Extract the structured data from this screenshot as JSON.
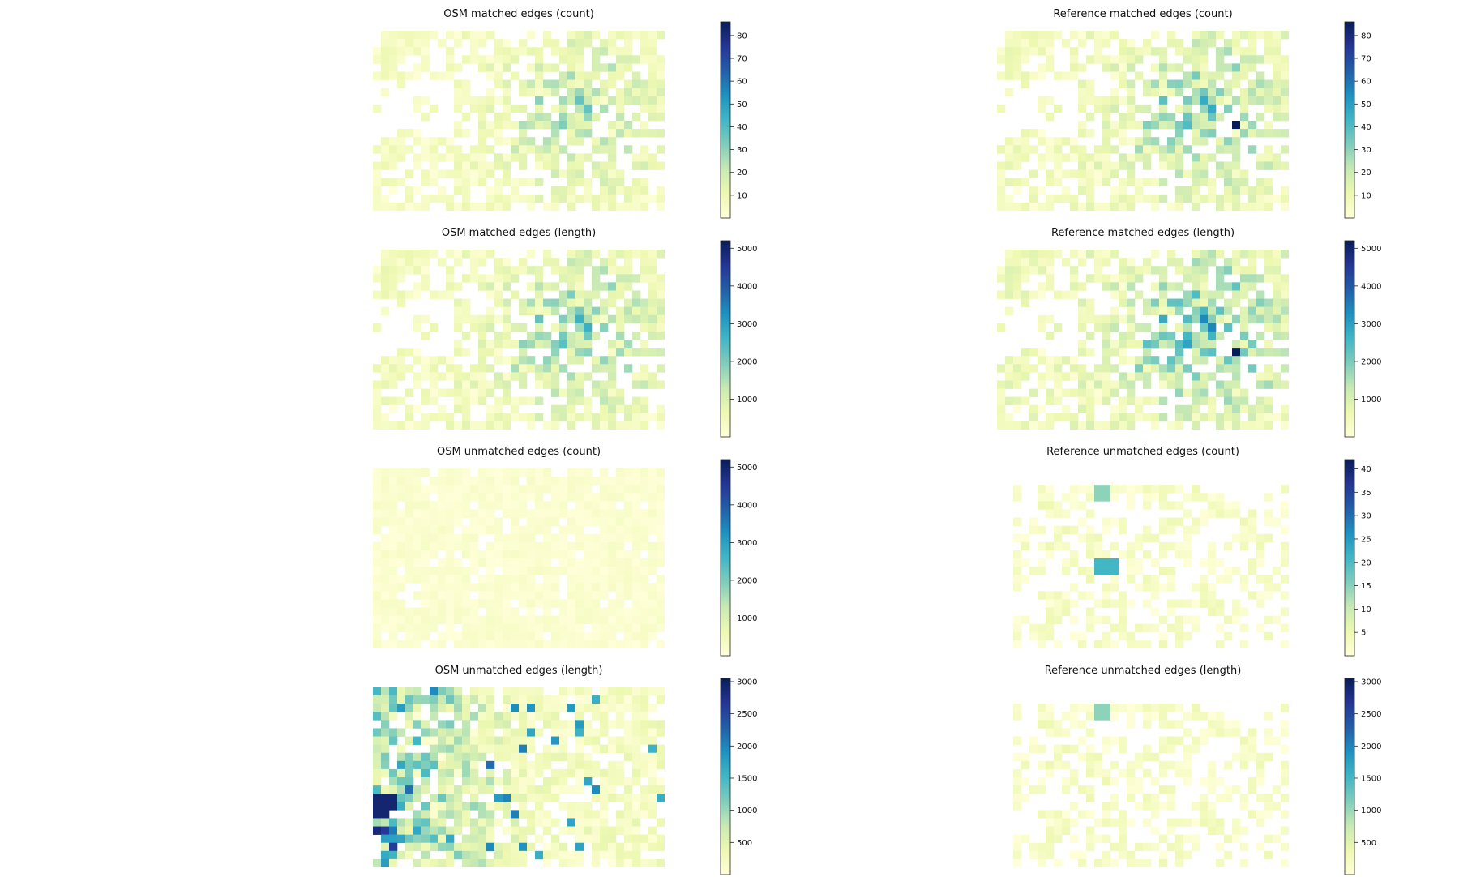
{
  "figure": {
    "panels": [
      {
        "title": "OSM matched edges (count)",
        "max": 86,
        "ticks": [
          10,
          20,
          30,
          40,
          50,
          60,
          70,
          80
        ],
        "pattern": "osm_matched_count"
      },
      {
        "title": "Reference matched edges (count)",
        "max": 86,
        "ticks": [
          10,
          20,
          30,
          40,
          50,
          60,
          70,
          80
        ],
        "pattern": "ref_matched_count"
      },
      {
        "title": "OSM matched edges (length)",
        "max": 5200,
        "ticks": [
          1000,
          2000,
          3000,
          4000,
          5000
        ],
        "pattern": "osm_matched_length"
      },
      {
        "title": "Reference matched edges (length)",
        "max": 5200,
        "ticks": [
          1000,
          2000,
          3000,
          4000,
          5000
        ],
        "pattern": "ref_matched_length"
      },
      {
        "title": "OSM unmatched edges (count)",
        "max": 5200,
        "ticks": [
          1000,
          2000,
          3000,
          4000,
          5000
        ],
        "pattern": "osm_unmatched_count"
      },
      {
        "title": "Reference unmatched edges (count)",
        "max": 42,
        "ticks": [
          5,
          10,
          15,
          20,
          25,
          30,
          35,
          40
        ],
        "pattern": "ref_unmatched_count"
      },
      {
        "title": "OSM unmatched edges (length)",
        "max": 3050,
        "ticks": [
          500,
          1000,
          1500,
          2000,
          2500,
          3000
        ],
        "pattern": "osm_unmatched_length"
      },
      {
        "title": "Reference unmatched edges (length)",
        "max": 3050,
        "ticks": [
          500,
          1000,
          1500,
          2000,
          2500,
          3000
        ],
        "pattern": "ref_unmatched_length"
      }
    ]
  },
  "chart_data": [
    {
      "type": "heatmap",
      "title": "OSM matched edges (count)",
      "colormap": "YlGnBu",
      "colorbar_range": [
        0,
        86
      ],
      "colorbar_ticks": [
        10,
        20,
        30,
        40,
        50,
        60,
        70,
        80
      ],
      "notes_max_cell": 50
    },
    {
      "type": "heatmap",
      "title": "Reference matched edges (count)",
      "colormap": "YlGnBu",
      "colorbar_range": [
        0,
        86
      ],
      "colorbar_ticks": [
        10,
        20,
        30,
        40,
        50,
        60,
        70,
        80
      ],
      "notes_max_cell": 86
    },
    {
      "type": "heatmap",
      "title": "OSM matched edges (length)",
      "colormap": "YlGnBu",
      "colorbar_range": [
        0,
        5200
      ],
      "colorbar_ticks": [
        1000,
        2000,
        3000,
        4000,
        5000
      ],
      "notes_max_cell": 3200
    },
    {
      "type": "heatmap",
      "title": "Reference matched edges (length)",
      "colormap": "YlGnBu",
      "colorbar_range": [
        0,
        5200
      ],
      "colorbar_ticks": [
        1000,
        2000,
        3000,
        4000,
        5000
      ],
      "notes_max_cell": 5200
    },
    {
      "type": "heatmap",
      "title": "OSM unmatched edges (count)",
      "colormap": "YlGnBu",
      "colorbar_range": [
        0,
        5200
      ],
      "colorbar_ticks": [
        1000,
        2000,
        3000,
        4000,
        5000
      ],
      "notes_max_cell": 300
    },
    {
      "type": "heatmap",
      "title": "Reference unmatched edges (count)",
      "colormap": "YlGnBu",
      "colorbar_range": [
        0,
        42
      ],
      "colorbar_ticks": [
        5,
        10,
        15,
        20,
        25,
        30,
        35,
        40
      ],
      "notes_max_cell": 22
    },
    {
      "type": "heatmap",
      "title": "OSM unmatched edges (length)",
      "colormap": "YlGnBu",
      "colorbar_range": [
        0,
        3050
      ],
      "colorbar_ticks": [
        500,
        1000,
        1500,
        2000,
        2500,
        3000
      ],
      "notes_max_cell": 3050
    },
    {
      "type": "heatmap",
      "title": "Reference unmatched edges (length)",
      "colormap": "YlGnBu",
      "colorbar_range": [
        0,
        3050
      ],
      "colorbar_ticks": [
        500,
        1000,
        1500,
        2000,
        2500,
        3000
      ],
      "notes_max_cell": 1500
    }
  ]
}
